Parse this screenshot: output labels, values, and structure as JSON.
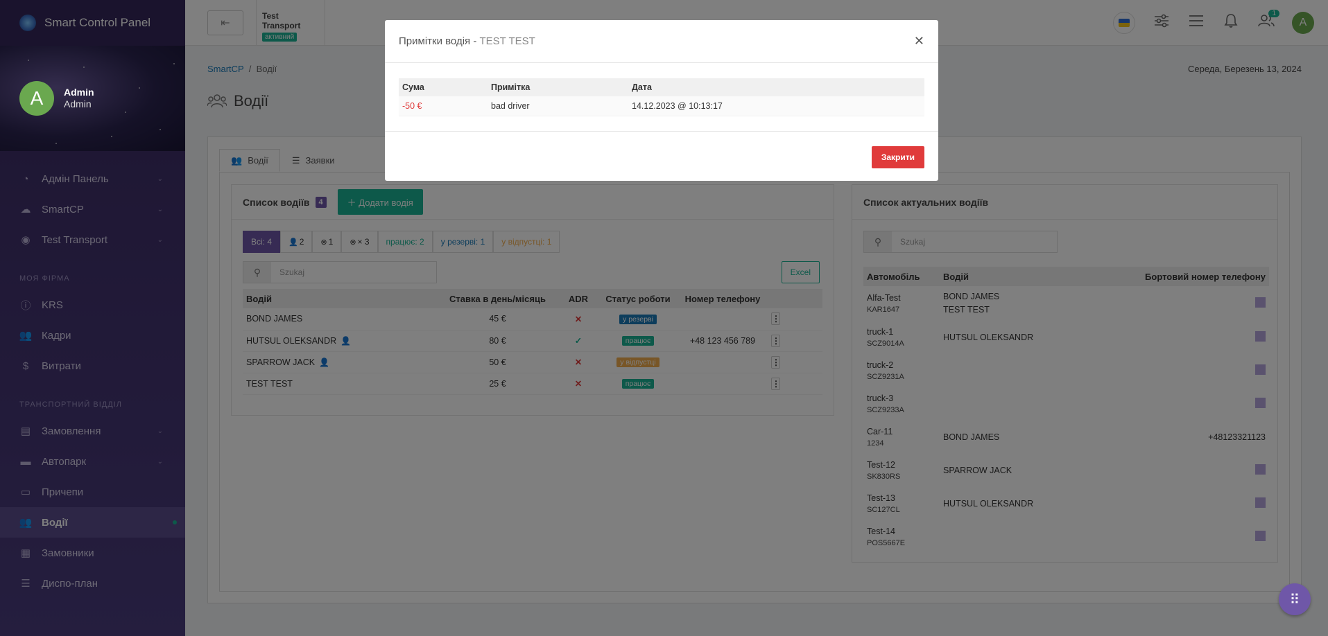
{
  "brand": {
    "title": "Smart Control Panel"
  },
  "user": {
    "name": "Admin",
    "role": "Admin",
    "avatar_letter": "A"
  },
  "sidebar": {
    "items": [
      {
        "label": "Адмін Панель",
        "icon": "gauge-icon",
        "chevron": true
      },
      {
        "label": "SmartCP",
        "icon": "cloud-icon",
        "chevron": true
      },
      {
        "label": "Test Transport",
        "icon": "user-circle-icon",
        "chevron": true
      }
    ],
    "section1": "МОЯ ФІРМА",
    "items2": [
      {
        "label": "KRS",
        "icon": "info-icon"
      },
      {
        "label": "Кадри",
        "icon": "users-icon"
      },
      {
        "label": "Витрати",
        "icon": "money-hand-icon"
      }
    ],
    "section2": "ТРАНСПОРТНИЙ ВІДДІЛ",
    "items3": [
      {
        "label": "Замовлення",
        "icon": "clipboard-icon",
        "chevron": true
      },
      {
        "label": "Автопарк",
        "icon": "truck-icon",
        "chevron": true
      },
      {
        "label": "Причепи",
        "icon": "trailer-icon"
      },
      {
        "label": "Водії",
        "icon": "users-icon",
        "active": true
      },
      {
        "label": "Замовники",
        "icon": "building-icon"
      },
      {
        "label": "Диспо-план",
        "icon": "list-icon"
      }
    ]
  },
  "topbar": {
    "back_icon": "arrow-left-icon",
    "company_name": "Test Transport",
    "company_status": "активний",
    "notifications_count": "1",
    "avatar_letter": "A"
  },
  "breadcrumb": {
    "root": "SmartCP",
    "separator": "/",
    "current": "Водії"
  },
  "date": "Середа, Березень 13, 2024",
  "page_title": "Водії",
  "tabs": [
    {
      "label": "Водії",
      "icon": "users-icon"
    },
    {
      "label": "Заявки",
      "icon": "list-check-icon"
    }
  ],
  "drivers_card": {
    "title": "Список водіїв",
    "count": "4",
    "add_button": "Додати водія",
    "filters": [
      "Всі: 4",
      "2",
      "1",
      "× 3",
      "працює: 2",
      "у резерві: 1",
      "у відпустці: 1"
    ],
    "search_placeholder": "Szukaj",
    "excel_label": "Excel",
    "columns": [
      "Водій",
      "Ставка в день/місяць",
      "ADR",
      "Статус роботи",
      "Номер телефону"
    ],
    "rows": [
      {
        "name": "BOND JAMES",
        "rate": "45 €",
        "adr": "✕",
        "status": "у резерві",
        "status_color": "#1a7bb9",
        "phone": "",
        "user_icon": false
      },
      {
        "name": "HUTSUL OLEKSANDR",
        "rate": "80 €",
        "adr": "✓",
        "status": "працює",
        "status_color": "#1ab394",
        "phone": "+48 123 456 789",
        "user_icon": true
      },
      {
        "name": "SPARROW JACK",
        "rate": "50 €",
        "adr": "✕",
        "status": "у відпустці",
        "status_color": "#f0ad4e",
        "phone": "",
        "user_icon": true
      },
      {
        "name": "TEST TEST",
        "rate": "25 €",
        "adr": "✕",
        "status": "працює",
        "status_color": "#1ab394",
        "phone": "",
        "user_icon": false
      }
    ]
  },
  "actual_card": {
    "title": "Список актуальних водіїв",
    "search_placeholder": "Szukaj",
    "columns": [
      "Автомобіль",
      "Водій",
      "Бортовий номер телефону"
    ],
    "rows": [
      {
        "car": "Alfa-Test",
        "plate": "KAR1647",
        "drivers": "BOND JAMES\nTEST TEST",
        "phone": ""
      },
      {
        "car": "truck-1",
        "plate": "SCZ9014A",
        "drivers": "HUTSUL OLEKSANDR",
        "phone": ""
      },
      {
        "car": "truck-2",
        "plate": "SCZ9231A",
        "drivers": "",
        "phone": ""
      },
      {
        "car": "truck-3",
        "plate": "SCZ9233A",
        "drivers": "",
        "phone": ""
      },
      {
        "car": "Car-11",
        "plate": "1234",
        "drivers": "BOND JAMES",
        "phone": "+48123321123"
      },
      {
        "car": "Test-12",
        "plate": "SK830RS",
        "drivers": "SPARROW JACK",
        "phone": ""
      },
      {
        "car": "Test-13",
        "plate": "SC127CL",
        "drivers": "HUTSUL OLEKSANDR",
        "phone": ""
      },
      {
        "car": "Test-14",
        "plate": "POS5667E",
        "drivers": "",
        "phone": ""
      }
    ]
  },
  "modal": {
    "title": "Примітки водія - ",
    "subtitle": "TEST TEST",
    "columns": [
      "Сума",
      "Примітка",
      "Дата"
    ],
    "rows": [
      {
        "sum": "-50 €",
        "note": "bad driver",
        "date": "14.12.2023 @ 10:13:17"
      }
    ],
    "close_button": "Закрити"
  },
  "colors": {
    "accent": "#6f57a8",
    "green": "#1ab394",
    "red": "#e03b3b"
  }
}
